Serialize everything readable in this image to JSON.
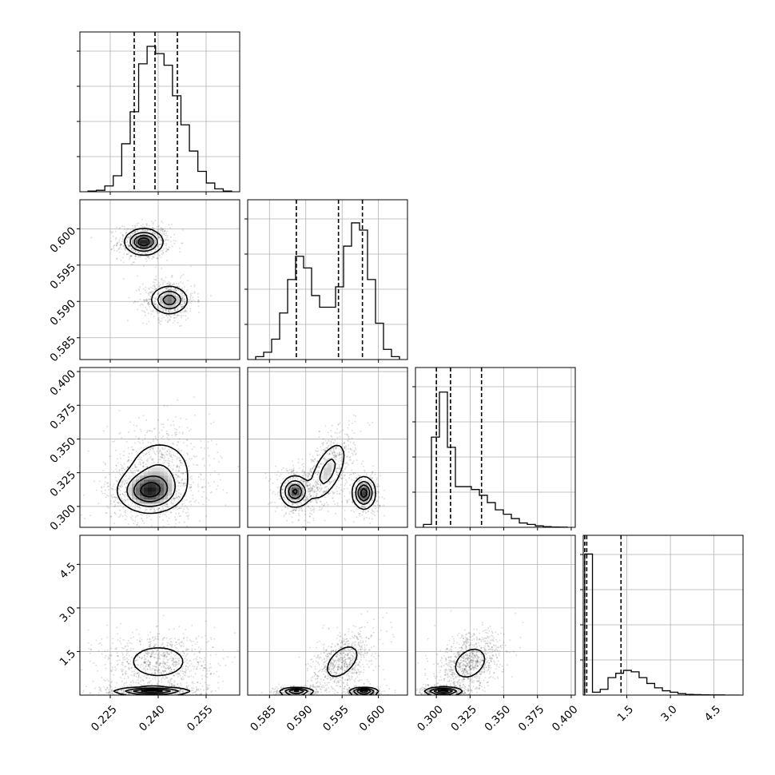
{
  "chart_data": {
    "type": "corner",
    "parameters": [
      {
        "range": [
          0.2155,
          0.2655
        ],
        "ticks": [
          "0.225",
          "0.240",
          "0.255"
        ],
        "tick_values": [
          0.225,
          0.24,
          0.255
        ],
        "quantiles": [
          0.2325,
          0.239,
          0.246
        ]
      },
      {
        "range": [
          0.582,
          0.604
        ],
        "ticks": [
          "0.585",
          "0.590",
          "0.595",
          "0.600"
        ],
        "tick_values": [
          0.585,
          0.59,
          0.595,
          0.6
        ],
        "quantiles": [
          0.5887,
          0.5945,
          0.5978
        ]
      },
      {
        "range": [
          0.2845,
          0.403
        ],
        "ticks": [
          "0.300",
          "0.325",
          "0.350",
          "0.375",
          "0.400"
        ],
        "tick_values": [
          0.3,
          0.325,
          0.35,
          0.375,
          0.4
        ],
        "quantiles": [
          0.3,
          0.3105,
          0.3335
        ]
      },
      {
        "range": [
          0.0,
          5.5
        ],
        "ticks": [
          "1.5",
          "3.0",
          "4.5"
        ],
        "tick_values": [
          1.5,
          3.0,
          4.5
        ],
        "quantiles": [
          0.05,
          0.12,
          1.3
        ]
      }
    ],
    "histograms": [
      [
        0.005,
        0.01,
        0.04,
        0.11,
        0.33,
        0.55,
        0.88,
        1.0,
        0.95,
        0.87,
        0.66,
        0.46,
        0.28,
        0.14,
        0.06,
        0.02,
        0.005
      ],
      [
        0.02,
        0.05,
        0.14,
        0.32,
        0.55,
        0.71,
        0.63,
        0.44,
        0.36,
        0.36,
        0.5,
        0.78,
        0.94,
        0.89,
        0.55,
        0.25,
        0.07,
        0.02
      ],
      [
        0.02,
        0.62,
        0.93,
        0.55,
        0.28,
        0.28,
        0.26,
        0.22,
        0.17,
        0.12,
        0.09,
        0.06,
        0.03,
        0.02,
        0.01,
        0.005,
        0.002,
        0.001
      ],
      [
        0.97,
        0.02,
        0.04,
        0.12,
        0.15,
        0.17,
        0.16,
        0.12,
        0.08,
        0.05,
        0.03,
        0.02,
        0.01,
        0.005,
        0.003,
        0.002,
        0.001,
        0.001,
        0.0,
        0.0
      ]
    ],
    "panels": [
      {
        "x": 0,
        "y": 1,
        "blobs": [
          [
            0.2355,
            0.5982,
            0.003,
            0.0009,
            1.0,
            0.0
          ],
          [
            0.2435,
            0.5902,
            0.003,
            0.001,
            0.75,
            0.0
          ]
        ]
      },
      {
        "x": 0,
        "y": 2,
        "blobs": [
          [
            0.237,
            0.311,
            0.005,
            0.008,
            1.0,
            0.0
          ],
          [
            0.2405,
            0.326,
            0.006,
            0.014,
            0.45,
            0.0
          ]
        ]
      },
      {
        "x": 1,
        "y": 2,
        "blobs": [
          [
            0.5885,
            0.311,
            0.001,
            0.006,
            0.9,
            0.0
          ],
          [
            0.598,
            0.31,
            0.0008,
            0.006,
            1.0,
            0.0
          ],
          [
            0.593,
            0.326,
            0.0014,
            0.012,
            0.5,
            0.6
          ]
        ]
      },
      {
        "x": 0,
        "y": 3,
        "blobs": [
          [
            0.238,
            0.12,
            0.006,
            0.08,
            1.0,
            0.0
          ],
          [
            0.24,
            1.15,
            0.0065,
            0.4,
            0.28,
            0.0
          ]
        ]
      },
      {
        "x": 1,
        "y": 3,
        "blobs": [
          [
            0.5887,
            0.1,
            0.0012,
            0.08,
            0.9,
            0.0
          ],
          [
            0.598,
            0.1,
            0.001,
            0.08,
            1.0,
            0.0
          ],
          [
            0.595,
            1.15,
            0.0016,
            0.4,
            0.28,
            0.5
          ]
        ]
      },
      {
        "x": 2,
        "y": 3,
        "blobs": [
          [
            0.305,
            0.12,
            0.007,
            0.08,
            1.0,
            0.0
          ],
          [
            0.325,
            1.1,
            0.009,
            0.4,
            0.28,
            0.3
          ]
        ]
      }
    ]
  }
}
